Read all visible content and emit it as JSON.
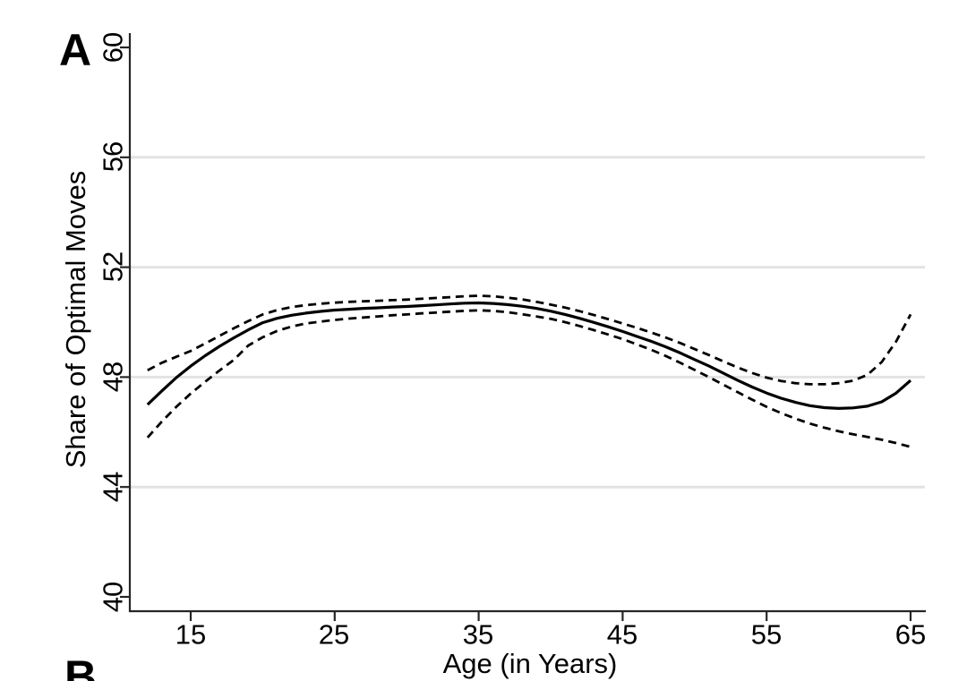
{
  "figure": {
    "panel_a_label": "A",
    "panel_b_label": "B"
  },
  "chart_data": {
    "type": "line",
    "title": "",
    "xlabel": "Age (in Years)",
    "ylabel": "Share of Optimal Moves",
    "xlim": [
      10.8,
      66.1
    ],
    "ylim": [
      39.5,
      60.5
    ],
    "x_ticks": [
      15,
      25,
      35,
      45,
      55,
      65
    ],
    "y_ticks": [
      40,
      44,
      48,
      52,
      56,
      60
    ],
    "gridline_values": [
      44,
      48,
      52,
      56
    ],
    "grid": "horizontal-only",
    "legend": "none",
    "colors": {
      "line": "#000000",
      "axis": "#262626",
      "grid": "#e3e3e3",
      "background": "#ffffff"
    },
    "x": [
      12,
      13,
      14,
      15,
      16,
      17,
      18,
      19,
      20,
      21,
      22,
      23,
      24,
      25,
      26,
      27,
      28,
      29,
      30,
      31,
      32,
      33,
      34,
      35,
      36,
      37,
      38,
      39,
      40,
      41,
      42,
      43,
      44,
      45,
      46,
      47,
      48,
      49,
      50,
      51,
      52,
      53,
      54,
      55,
      56,
      57,
      58,
      59,
      60,
      61,
      62,
      63,
      64,
      65
    ],
    "series": [
      {
        "name": "point-estimate",
        "style": "solid",
        "values": [
          47.0,
          47.5,
          47.98,
          48.4,
          48.78,
          49.12,
          49.43,
          49.72,
          49.98,
          50.14,
          50.25,
          50.33,
          50.39,
          50.44,
          50.47,
          50.5,
          50.52,
          50.55,
          50.57,
          50.6,
          50.63,
          50.66,
          50.69,
          50.7,
          50.68,
          50.64,
          50.58,
          50.5,
          50.4,
          50.28,
          50.14,
          49.99,
          49.83,
          49.66,
          49.48,
          49.3,
          49.1,
          48.88,
          48.64,
          48.4,
          48.14,
          47.88,
          47.64,
          47.42,
          47.23,
          47.08,
          46.96,
          46.89,
          46.86,
          46.88,
          46.94,
          47.1,
          47.42,
          47.88
        ]
      },
      {
        "name": "ci-upper",
        "style": "dashed",
        "values": [
          48.25,
          48.52,
          48.74,
          48.95,
          49.22,
          49.5,
          49.78,
          50.04,
          50.28,
          50.44,
          50.55,
          50.62,
          50.67,
          50.71,
          50.74,
          50.76,
          50.78,
          50.8,
          50.82,
          50.85,
          50.88,
          50.91,
          50.94,
          50.96,
          50.94,
          50.89,
          50.83,
          50.74,
          50.64,
          50.53,
          50.4,
          50.26,
          50.11,
          49.95,
          49.79,
          49.62,
          49.44,
          49.24,
          49.02,
          48.8,
          48.57,
          48.35,
          48.15,
          47.98,
          47.86,
          47.78,
          47.74,
          47.74,
          47.78,
          47.87,
          48.08,
          48.55,
          49.3,
          50.28
        ]
      },
      {
        "name": "ci-lower",
        "style": "dashed",
        "values": [
          45.8,
          46.38,
          46.92,
          47.4,
          47.83,
          48.24,
          48.63,
          49.15,
          49.45,
          49.68,
          49.84,
          49.95,
          50.02,
          50.08,
          50.13,
          50.17,
          50.21,
          50.25,
          50.28,
          50.32,
          50.35,
          50.38,
          50.41,
          50.43,
          50.41,
          50.36,
          50.29,
          50.21,
          50.12,
          50.0,
          49.86,
          49.71,
          49.55,
          49.38,
          49.19,
          48.99,
          48.77,
          48.52,
          48.26,
          48.0,
          47.72,
          47.45,
          47.18,
          46.92,
          46.69,
          46.49,
          46.31,
          46.16,
          46.03,
          45.92,
          45.82,
          45.72,
          45.6,
          45.46
        ]
      }
    ]
  }
}
